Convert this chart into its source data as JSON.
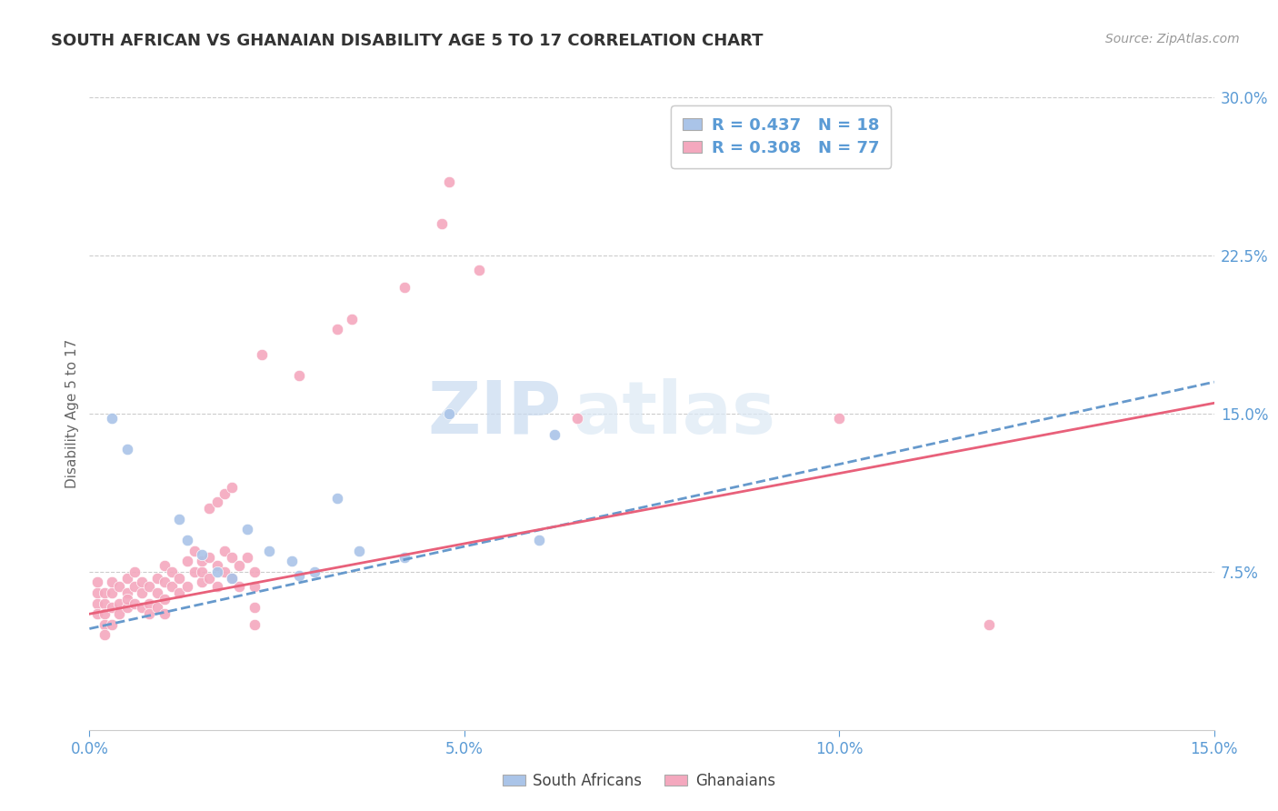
{
  "title": "SOUTH AFRICAN VS GHANAIAN DISABILITY AGE 5 TO 17 CORRELATION CHART",
  "source": "Source: ZipAtlas.com",
  "ylabel": "Disability Age 5 to 17",
  "xlabel": "",
  "xlim": [
    0.0,
    0.15
  ],
  "ylim": [
    0.0,
    0.3
  ],
  "xticks": [
    0.0,
    0.05,
    0.1,
    0.15
  ],
  "xtick_labels": [
    "0.0%",
    "5.0%",
    "10.0%",
    "15.0%"
  ],
  "yticks": [
    0.075,
    0.15,
    0.225,
    0.3
  ],
  "ytick_labels": [
    "7.5%",
    "15.0%",
    "22.5%",
    "30.0%"
  ],
  "sa_color": "#aac4e8",
  "gh_color": "#f4a8be",
  "sa_line_color": "#6699cc",
  "gh_line_color": "#e8607a",
  "R_sa": 0.437,
  "N_sa": 18,
  "R_gh": 0.308,
  "N_gh": 77,
  "legend_label_sa": "South Africans",
  "legend_label_gh": "Ghanaians",
  "watermark_zip": "ZIP",
  "watermark_atlas": "atlas",
  "title_color": "#333333",
  "tick_color": "#5b9bd5",
  "grid_color": "#cccccc",
  "sa_scatter": [
    [
      0.003,
      0.148
    ],
    [
      0.005,
      0.133
    ],
    [
      0.012,
      0.1
    ],
    [
      0.013,
      0.09
    ],
    [
      0.015,
      0.083
    ],
    [
      0.017,
      0.075
    ],
    [
      0.019,
      0.072
    ],
    [
      0.021,
      0.095
    ],
    [
      0.024,
      0.085
    ],
    [
      0.027,
      0.08
    ],
    [
      0.028,
      0.073
    ],
    [
      0.03,
      0.075
    ],
    [
      0.033,
      0.11
    ],
    [
      0.036,
      0.085
    ],
    [
      0.042,
      0.082
    ],
    [
      0.048,
      0.15
    ],
    [
      0.06,
      0.09
    ],
    [
      0.062,
      0.14
    ]
  ],
  "gh_scatter": [
    [
      0.001,
      0.065
    ],
    [
      0.001,
      0.06
    ],
    [
      0.001,
      0.055
    ],
    [
      0.001,
      0.07
    ],
    [
      0.002,
      0.06
    ],
    [
      0.002,
      0.055
    ],
    [
      0.002,
      0.065
    ],
    [
      0.002,
      0.05
    ],
    [
      0.002,
      0.045
    ],
    [
      0.003,
      0.058
    ],
    [
      0.003,
      0.065
    ],
    [
      0.003,
      0.07
    ],
    [
      0.003,
      0.05
    ],
    [
      0.004,
      0.06
    ],
    [
      0.004,
      0.068
    ],
    [
      0.004,
      0.055
    ],
    [
      0.005,
      0.065
    ],
    [
      0.005,
      0.058
    ],
    [
      0.005,
      0.072
    ],
    [
      0.005,
      0.062
    ],
    [
      0.006,
      0.068
    ],
    [
      0.006,
      0.06
    ],
    [
      0.006,
      0.075
    ],
    [
      0.007,
      0.065
    ],
    [
      0.007,
      0.058
    ],
    [
      0.007,
      0.07
    ],
    [
      0.008,
      0.068
    ],
    [
      0.008,
      0.06
    ],
    [
      0.008,
      0.055
    ],
    [
      0.009,
      0.072
    ],
    [
      0.009,
      0.065
    ],
    [
      0.009,
      0.058
    ],
    [
      0.01,
      0.07
    ],
    [
      0.01,
      0.062
    ],
    [
      0.01,
      0.055
    ],
    [
      0.01,
      0.078
    ],
    [
      0.011,
      0.068
    ],
    [
      0.011,
      0.075
    ],
    [
      0.012,
      0.072
    ],
    [
      0.012,
      0.065
    ],
    [
      0.013,
      0.08
    ],
    [
      0.013,
      0.068
    ],
    [
      0.014,
      0.075
    ],
    [
      0.014,
      0.085
    ],
    [
      0.015,
      0.07
    ],
    [
      0.015,
      0.08
    ],
    [
      0.015,
      0.075
    ],
    [
      0.016,
      0.082
    ],
    [
      0.016,
      0.072
    ],
    [
      0.017,
      0.078
    ],
    [
      0.017,
      0.068
    ],
    [
      0.018,
      0.085
    ],
    [
      0.018,
      0.075
    ],
    [
      0.019,
      0.082
    ],
    [
      0.019,
      0.072
    ],
    [
      0.02,
      0.078
    ],
    [
      0.02,
      0.068
    ],
    [
      0.021,
      0.082
    ],
    [
      0.022,
      0.075
    ],
    [
      0.022,
      0.068
    ],
    [
      0.022,
      0.058
    ],
    [
      0.022,
      0.05
    ],
    [
      0.016,
      0.105
    ],
    [
      0.017,
      0.108
    ],
    [
      0.018,
      0.112
    ],
    [
      0.019,
      0.115
    ],
    [
      0.023,
      0.178
    ],
    [
      0.028,
      0.168
    ],
    [
      0.033,
      0.19
    ],
    [
      0.035,
      0.195
    ],
    [
      0.042,
      0.21
    ],
    [
      0.047,
      0.24
    ],
    [
      0.048,
      0.26
    ],
    [
      0.052,
      0.218
    ],
    [
      0.065,
      0.148
    ],
    [
      0.1,
      0.148
    ],
    [
      0.12,
      0.05
    ]
  ]
}
